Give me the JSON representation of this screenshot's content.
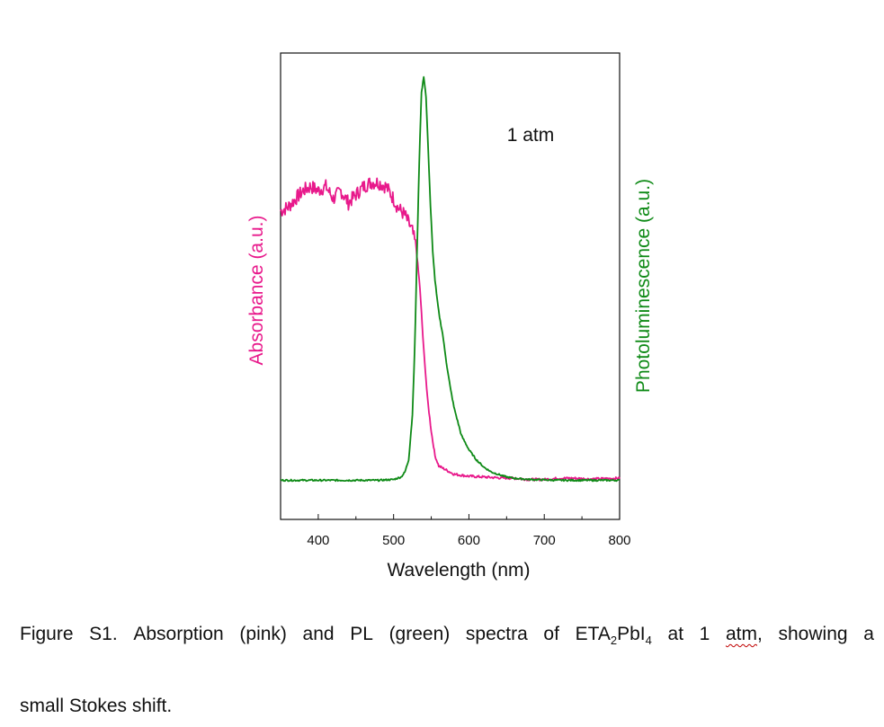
{
  "chart_data": {
    "type": "line",
    "title": "",
    "xlabel": "Wavelength (nm)",
    "ylabel_left": "Absorbance (a.u.)",
    "ylabel_right": "Photoluminescence (a.u.)",
    "xlim": [
      350,
      800
    ],
    "ylim": [
      0,
      1
    ],
    "x_ticks": [
      400,
      500,
      600,
      700,
      800
    ],
    "grid": false,
    "annotation": "1 atm",
    "series": [
      {
        "name": "Absorption",
        "axis": "left",
        "color": "#e8198b",
        "x": [
          350,
          360,
          370,
          380,
          390,
          400,
          410,
          420,
          430,
          440,
          450,
          460,
          470,
          480,
          490,
          500,
          505,
          510,
          515,
          520,
          525,
          530,
          535,
          540,
          545,
          550,
          555,
          560,
          570,
          580,
          600,
          620,
          640,
          660,
          680,
          700,
          720,
          740,
          760,
          780,
          800
        ],
        "y": [
          0.67,
          0.68,
          0.7,
          0.72,
          0.73,
          0.72,
          0.73,
          0.7,
          0.72,
          0.69,
          0.71,
          0.73,
          0.74,
          0.74,
          0.73,
          0.7,
          0.68,
          0.67,
          0.66,
          0.64,
          0.62,
          0.58,
          0.48,
          0.33,
          0.21,
          0.13,
          0.07,
          0.045,
          0.035,
          0.025,
          0.02,
          0.018,
          0.016,
          0.015,
          0.012,
          0.012,
          0.015,
          0.015,
          0.013,
          0.014,
          0.015
        ]
      },
      {
        "name": "PL",
        "axis": "right",
        "color": "#0e8a16",
        "x": [
          350,
          400,
          450,
          480,
          500,
          510,
          515,
          520,
          525,
          528,
          531,
          534,
          537,
          540,
          543,
          546,
          549,
          552,
          555,
          558,
          561,
          565,
          570,
          575,
          580,
          590,
          600,
          610,
          620,
          630,
          640,
          650,
          660,
          680,
          700,
          720,
          750,
          780,
          800
        ],
        "y": [
          0.01,
          0.01,
          0.01,
          0.01,
          0.012,
          0.018,
          0.03,
          0.06,
          0.17,
          0.33,
          0.56,
          0.79,
          0.96,
          1.0,
          0.95,
          0.82,
          0.68,
          0.57,
          0.5,
          0.45,
          0.41,
          0.37,
          0.3,
          0.24,
          0.19,
          0.12,
          0.085,
          0.06,
          0.042,
          0.03,
          0.024,
          0.018,
          0.015,
          0.012,
          0.011,
          0.01,
          0.01,
          0.01,
          0.01
        ]
      }
    ]
  },
  "caption": {
    "line1_words": [
      "Figure",
      "S1.",
      "Absorption",
      "(pink)",
      "and",
      "PL",
      "(green)",
      "spectra",
      "of"
    ],
    "compound_base": "ETA",
    "compound_sub1": "2",
    "compound_mid": "PbI",
    "compound_sub2": "4",
    "word_at": "at",
    "word_1": "1",
    "word_atm": "atm",
    "word_comma": ",",
    "word_showing": "showing",
    "word_a": "a",
    "line2": "small Stokes shift."
  }
}
